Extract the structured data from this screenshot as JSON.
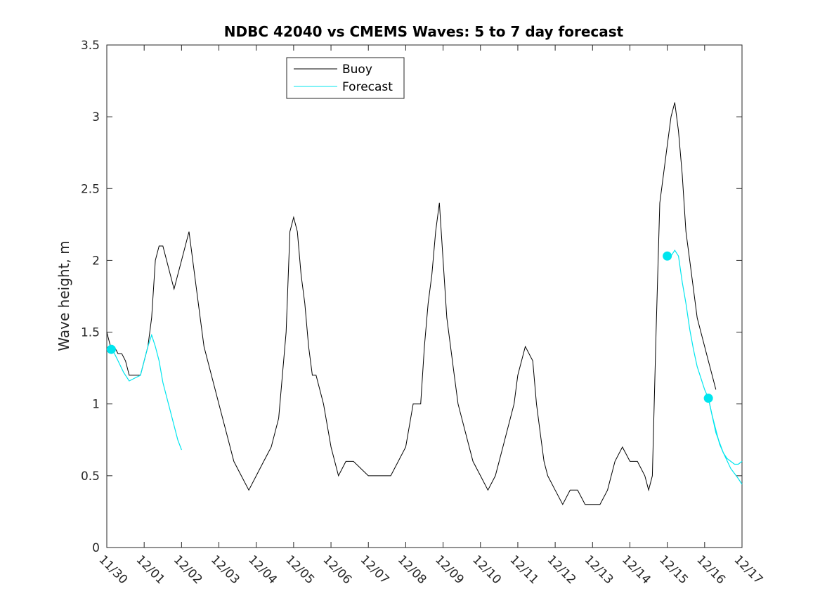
{
  "chart_data": {
    "type": "line",
    "title": "NDBC 42040 vs CMEMS Waves: 5 to 7 day forecast",
    "xlabel": "",
    "ylabel": "Wave height, m",
    "xlim": [
      0,
      17
    ],
    "ylim": [
      0,
      3.5
    ],
    "x_ticks": [
      0,
      1,
      2,
      3,
      4,
      5,
      6,
      7,
      8,
      9,
      10,
      11,
      12,
      13,
      14,
      15,
      16,
      17
    ],
    "x_tick_labels": [
      "11/30",
      "12/01",
      "12/02",
      "12/03",
      "12/04",
      "12/05",
      "12/06",
      "12/07",
      "12/08",
      "12/09",
      "12/10",
      "12/11",
      "12/12",
      "12/13",
      "12/14",
      "12/15",
      "12/16",
      "12/17"
    ],
    "y_ticks": [
      0,
      0.5,
      1,
      1.5,
      2,
      2.5,
      3,
      3.5
    ],
    "y_tick_labels": [
      "0",
      "0.5",
      "1",
      "1.5",
      "2",
      "2.5",
      "3",
      "3.5"
    ],
    "legend": {
      "position": "top-center",
      "entries": [
        "Buoy",
        "Forecast"
      ]
    },
    "series": [
      {
        "name": "Buoy",
        "color": "#000000",
        "x": [
          0,
          0.1,
          0.2,
          0.3,
          0.4,
          0.5,
          0.6,
          0.7,
          0.8,
          0.9,
          1.0,
          1.1,
          1.2,
          1.3,
          1.4,
          1.5,
          1.6,
          1.7,
          1.8,
          1.9,
          2.0,
          2.1,
          2.2,
          2.3,
          2.4,
          2.5,
          2.6,
          2.7,
          2.8,
          2.9,
          3.0,
          3.2,
          3.4,
          3.6,
          3.8,
          4.0,
          4.2,
          4.4,
          4.6,
          4.8,
          4.9,
          5.0,
          5.1,
          5.2,
          5.3,
          5.4,
          5.5,
          5.6,
          5.8,
          6.0,
          6.2,
          6.4,
          6.5,
          6.6,
          6.8,
          7.0,
          7.2,
          7.4,
          7.6,
          7.8,
          8.0,
          8.2,
          8.4,
          8.5,
          8.6,
          8.7,
          8.8,
          8.9,
          9.0,
          9.1,
          9.2,
          9.3,
          9.4,
          9.6,
          9.8,
          10.0,
          10.2,
          10.4,
          10.6,
          10.8,
          10.9,
          11.0,
          11.2,
          11.4,
          11.5,
          11.6,
          11.7,
          11.8,
          12.0,
          12.2,
          12.4,
          12.6,
          12.8,
          13.0,
          13.2,
          13.4,
          13.6,
          13.8,
          14.0,
          14.2,
          14.4,
          14.5,
          14.6,
          14.7,
          14.8,
          14.9,
          15.0,
          15.1,
          15.2,
          15.3,
          15.4,
          15.5,
          15.6,
          15.7,
          15.8,
          15.9,
          16.0,
          16.1,
          16.2,
          16.3
        ],
        "y": [
          1.5,
          1.4,
          1.4,
          1.35,
          1.35,
          1.3,
          1.2,
          1.2,
          1.2,
          1.2,
          1.3,
          1.4,
          1.6,
          2.0,
          2.1,
          2.1,
          2.0,
          1.9,
          1.8,
          1.9,
          2.0,
          2.1,
          2.2,
          2.0,
          1.8,
          1.6,
          1.4,
          1.3,
          1.2,
          1.1,
          1.0,
          0.8,
          0.6,
          0.5,
          0.4,
          0.5,
          0.6,
          0.7,
          0.9,
          1.5,
          2.2,
          2.3,
          2.2,
          1.9,
          1.7,
          1.4,
          1.2,
          1.2,
          1.0,
          0.7,
          0.5,
          0.6,
          0.6,
          0.6,
          0.55,
          0.5,
          0.5,
          0.5,
          0.5,
          0.6,
          0.7,
          1.0,
          1.0,
          1.4,
          1.7,
          1.9,
          2.2,
          2.4,
          2.0,
          1.6,
          1.4,
          1.2,
          1.0,
          0.8,
          0.6,
          0.5,
          0.4,
          0.5,
          0.7,
          0.9,
          1.0,
          1.2,
          1.4,
          1.3,
          1.0,
          0.8,
          0.6,
          0.5,
          0.4,
          0.3,
          0.4,
          0.4,
          0.3,
          0.3,
          0.3,
          0.4,
          0.6,
          0.7,
          0.6,
          0.6,
          0.5,
          0.4,
          0.5,
          1.5,
          2.4,
          2.6,
          2.8,
          3.0,
          3.1,
          2.9,
          2.6,
          2.2,
          2.0,
          1.8,
          1.6,
          1.5,
          1.4,
          1.3,
          1.2,
          1.1
        ]
      },
      {
        "name": "Forecast",
        "color": "#00e5ee",
        "segments": [
          {
            "x": [
              0,
              0.15,
              0.3,
              0.45,
              0.6,
              0.75,
              0.9,
              1.0,
              1.1,
              1.2,
              1.3,
              1.4,
              1.5,
              1.6,
              1.7,
              1.8,
              1.9,
              2.0
            ],
            "y": [
              1.38,
              1.38,
              1.3,
              1.22,
              1.16,
              1.18,
              1.2,
              1.3,
              1.4,
              1.48,
              1.4,
              1.3,
              1.15,
              1.05,
              0.95,
              0.85,
              0.75,
              0.68
            ]
          },
          {
            "x": [
              15.1,
              15.2,
              15.3,
              15.4,
              15.5,
              15.6,
              15.7,
              15.8,
              15.9,
              16.0,
              16.1,
              16.2,
              16.3,
              16.4,
              16.5,
              16.6,
              16.7,
              16.8,
              16.9,
              17.0
            ],
            "y": [
              2.03,
              2.07,
              2.03,
              1.85,
              1.7,
              1.52,
              1.38,
              1.26,
              1.18,
              1.1,
              1.04,
              0.92,
              0.82,
              0.72,
              0.66,
              0.62,
              0.6,
              0.58,
              0.58,
              0.6
            ]
          },
          {
            "x": [
              16.1,
              16.3,
              16.5,
              16.7,
              16.9,
              17.0
            ],
            "y": [
              1.04,
              0.8,
              0.66,
              0.55,
              0.48,
              0.44
            ]
          }
        ],
        "markers": [
          {
            "x": 0.12,
            "y": 1.38
          },
          {
            "x": 15.0,
            "y": 2.03
          },
          {
            "x": 16.1,
            "y": 1.04
          }
        ]
      }
    ]
  }
}
